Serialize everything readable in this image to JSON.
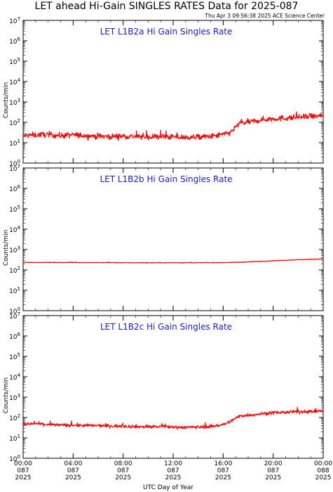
{
  "title": "LET ahead Hi-Gain SINGLES RATES Data for 2025-087",
  "timestamp": "Thu Apr  3 09:56:38 2025 ACE Science Center",
  "colors": {
    "series": "#ff0000",
    "panel_title": "#1a1ad6",
    "axes": "#000000"
  },
  "chart_data": {
    "type": "line",
    "xlabel": "UTC Day of Year",
    "ylabel": "Counts/min",
    "yscale": "log",
    "ylim": [
      1,
      10000000
    ],
    "xlim_hours": [
      0,
      24
    ],
    "x_ticks": [
      {
        "hour": 0,
        "time": "00:00",
        "day": "087",
        "year": "2025"
      },
      {
        "hour": 4,
        "time": "04:00",
        "day": "087",
        "year": "2025"
      },
      {
        "hour": 8,
        "time": "08:00",
        "day": "087",
        "year": "2025"
      },
      {
        "hour": 12,
        "time": "12:00",
        "day": "087",
        "year": "2025"
      },
      {
        "hour": 16,
        "time": "16:00",
        "day": "087",
        "year": "2025"
      },
      {
        "hour": 20,
        "time": "20:00",
        "day": "087",
        "year": "2025"
      },
      {
        "hour": 24,
        "time": "00:00",
        "day": "088",
        "year": "2025"
      }
    ],
    "y_ticks": [
      {
        "base": "10",
        "exp": "0",
        "value": 1
      },
      {
        "base": "10",
        "exp": "1",
        "value": 10
      },
      {
        "base": "10",
        "exp": "2",
        "value": 100
      },
      {
        "base": "10",
        "exp": "3",
        "value": 1000
      },
      {
        "base": "10",
        "exp": "4",
        "value": 10000
      },
      {
        "base": "10",
        "exp": "5",
        "value": 100000
      },
      {
        "base": "10",
        "exp": "6",
        "value": 1000000
      },
      {
        "base": "10",
        "exp": "7",
        "value": 10000000
      }
    ],
    "panels": [
      {
        "title": "LET L1B2a Hi Gain Singles Rate",
        "x": [
          0,
          1,
          2,
          3,
          4,
          5,
          6,
          7,
          8,
          9,
          10,
          11,
          12,
          13,
          14,
          15,
          16,
          16.5,
          17,
          17.3,
          18,
          19,
          20,
          21,
          22,
          23,
          24
        ],
        "y": [
          22,
          24,
          25,
          22,
          24,
          22,
          21,
          20,
          21,
          20,
          19,
          20,
          19,
          18,
          19,
          20,
          25,
          30,
          55,
          90,
          100,
          130,
          150,
          160,
          175,
          190,
          210
        ],
        "noise": 0.55
      },
      {
        "title": "LET L1B2b Hi Gain Singles Rate",
        "x": [
          0,
          2,
          4,
          6,
          8,
          10,
          12,
          14,
          16,
          17,
          18,
          19,
          20,
          21,
          22,
          23,
          24
        ],
        "y": [
          235,
          232,
          230,
          228,
          226,
          225,
          225,
          226,
          228,
          235,
          245,
          260,
          280,
          300,
          315,
          330,
          350
        ],
        "noise": 0.06
      },
      {
        "title": "LET L1B2c Hi Gain Singles Rate",
        "x": [
          0,
          1,
          2,
          3,
          4,
          5,
          6,
          7,
          8,
          9,
          10,
          11,
          12,
          13,
          14,
          15,
          16,
          16.5,
          17,
          17.3,
          18,
          19,
          20,
          21,
          22,
          23,
          24
        ],
        "y": [
          45,
          50,
          45,
          42,
          42,
          40,
          40,
          38,
          38,
          36,
          35,
          36,
          34,
          33,
          34,
          36,
          45,
          60,
          90,
          120,
          130,
          150,
          170,
          180,
          190,
          200,
          210
        ],
        "noise": 0.32
      }
    ]
  }
}
